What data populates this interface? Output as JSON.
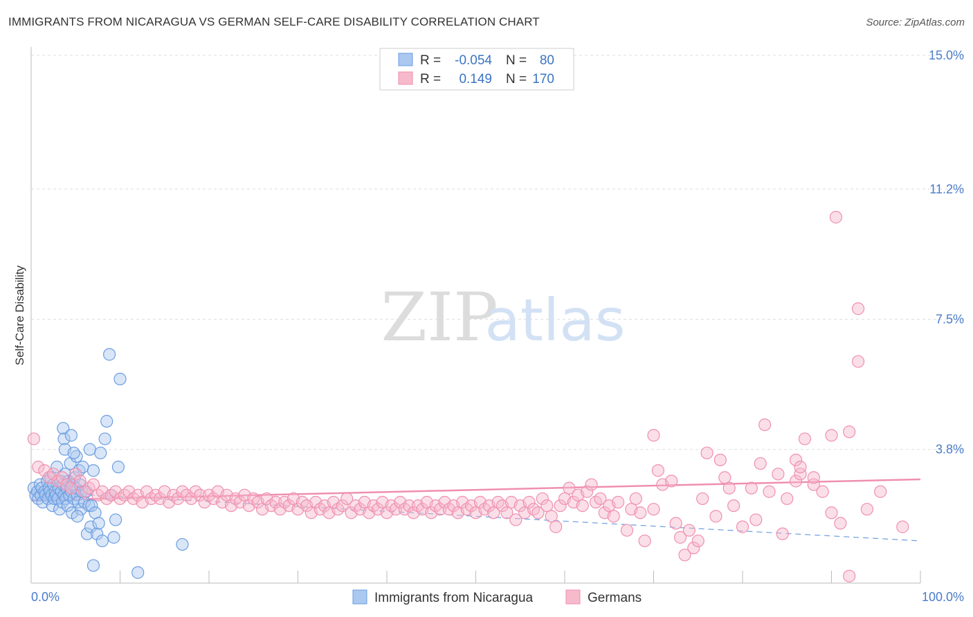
{
  "header": {
    "title": "IMMIGRANTS FROM NICARAGUA VS GERMAN SELF-CARE DISABILITY CORRELATION CHART",
    "source": "Source: ZipAtlas.com"
  },
  "watermark": {
    "zip": "ZIP",
    "atlas": "atlas"
  },
  "legend": {
    "r_label": "R =",
    "n_label": "N =",
    "rows": [
      {
        "r": "-0.054",
        "n": "80",
        "color": "#aac8f0"
      },
      {
        "r": "0.149",
        "n": "170",
        "color": "#f7b9cc"
      }
    ]
  },
  "chart_data": {
    "type": "scatter",
    "title": "IMMIGRANTS FROM NICARAGUA VS GERMAN SELF-CARE DISABILITY CORRELATION CHART",
    "xlabel": "",
    "ylabel": "Self-Care Disability",
    "xlim": [
      0,
      100
    ],
    "ylim": [
      0,
      15
    ],
    "x_tick_labels": [
      "0.0%",
      "100.0%"
    ],
    "y_ticks": [
      3.8,
      7.5,
      11.2,
      15.0
    ],
    "y_tick_labels": [
      "3.8%",
      "7.5%",
      "11.2%",
      "15.0%"
    ],
    "grid": "horizontal dashed",
    "legend_position": "bottom",
    "series": [
      {
        "name": "Immigrants from Nicaragua",
        "color": "#6b9de0",
        "trend": {
          "x": [
            0,
            100
          ],
          "y": [
            2.6,
            1.2
          ],
          "dashed": true
        },
        "points": [
          [
            0.3,
            2.7
          ],
          [
            0.5,
            2.5
          ],
          [
            0.7,
            2.6
          ],
          [
            0.8,
            2.4
          ],
          [
            1.0,
            2.8
          ],
          [
            1.1,
            2.5
          ],
          [
            1.2,
            2.7
          ],
          [
            1.3,
            2.3
          ],
          [
            1.5,
            2.6
          ],
          [
            1.6,
            2.5
          ],
          [
            1.8,
            2.9
          ],
          [
            1.9,
            2.4
          ],
          [
            2.0,
            2.7
          ],
          [
            2.1,
            2.6
          ],
          [
            2.2,
            3.0
          ],
          [
            2.3,
            2.5
          ],
          [
            2.4,
            2.2
          ],
          [
            2.5,
            2.8
          ],
          [
            2.6,
            2.4
          ],
          [
            2.7,
            2.6
          ],
          [
            2.8,
            2.5
          ],
          [
            2.9,
            3.3
          ],
          [
            3.0,
            2.4
          ],
          [
            3.1,
            2.7
          ],
          [
            3.2,
            2.1
          ],
          [
            3.3,
            2.9
          ],
          [
            3.4,
            2.6
          ],
          [
            3.5,
            2.3
          ],
          [
            3.6,
            2.8
          ],
          [
            3.7,
            2.5
          ],
          [
            3.8,
            3.1
          ],
          [
            3.9,
            2.4
          ],
          [
            4.0,
            2.7
          ],
          [
            4.1,
            2.2
          ],
          [
            4.2,
            2.9
          ],
          [
            4.3,
            2.5
          ],
          [
            4.4,
            3.4
          ],
          [
            4.5,
            2.6
          ],
          [
            4.6,
            2.0
          ],
          [
            4.7,
            2.8
          ],
          [
            4.8,
            2.4
          ],
          [
            4.9,
            3.0
          ],
          [
            5.0,
            2.7
          ],
          [
            5.1,
            3.6
          ],
          [
            5.2,
            2.5
          ],
          [
            5.3,
            2.3
          ],
          [
            5.4,
            3.2
          ],
          [
            5.5,
            2.8
          ],
          [
            5.6,
            2.1
          ],
          [
            5.7,
            2.6
          ],
          [
            3.6,
            4.4
          ],
          [
            3.7,
            4.1
          ],
          [
            3.8,
            3.8
          ],
          [
            4.5,
            4.2
          ],
          [
            4.8,
            3.7
          ],
          [
            5.2,
            1.9
          ],
          [
            5.8,
            3.3
          ],
          [
            6.0,
            2.3
          ],
          [
            6.2,
            2.6
          ],
          [
            6.3,
            1.4
          ],
          [
            6.5,
            2.2
          ],
          [
            6.6,
            3.8
          ],
          [
            6.7,
            1.6
          ],
          [
            6.8,
            2.2
          ],
          [
            7.0,
            3.2
          ],
          [
            7.2,
            2.0
          ],
          [
            7.4,
            1.4
          ],
          [
            7.6,
            1.7
          ],
          [
            7.8,
            3.7
          ],
          [
            8.0,
            1.2
          ],
          [
            8.3,
            4.1
          ],
          [
            8.5,
            4.6
          ],
          [
            8.8,
            6.5
          ],
          [
            9.0,
            2.5
          ],
          [
            9.3,
            1.3
          ],
          [
            9.5,
            1.8
          ],
          [
            9.8,
            3.3
          ],
          [
            10.0,
            5.8
          ],
          [
            7.0,
            0.5
          ],
          [
            12.0,
            0.3
          ],
          [
            17.0,
            1.1
          ]
        ]
      },
      {
        "name": "Germans",
        "color": "#ef8fae",
        "trend": {
          "x": [
            0,
            100
          ],
          "y": [
            2.35,
            2.95
          ],
          "dashed": false
        },
        "points": [
          [
            0.3,
            4.1
          ],
          [
            0.8,
            3.3
          ],
          [
            1.5,
            3.2
          ],
          [
            2.0,
            3.0
          ],
          [
            2.5,
            3.1
          ],
          [
            3.0,
            2.9
          ],
          [
            3.5,
            3.0
          ],
          [
            4.0,
            2.8
          ],
          [
            4.5,
            2.7
          ],
          [
            5.0,
            3.1
          ],
          [
            5.5,
            2.9
          ],
          [
            6.0,
            2.6
          ],
          [
            6.5,
            2.7
          ],
          [
            7.0,
            2.8
          ],
          [
            7.5,
            2.5
          ],
          [
            8.0,
            2.6
          ],
          [
            8.5,
            2.4
          ],
          [
            9.0,
            2.5
          ],
          [
            9.5,
            2.6
          ],
          [
            10.0,
            2.4
          ],
          [
            10.5,
            2.5
          ],
          [
            11.0,
            2.6
          ],
          [
            11.5,
            2.4
          ],
          [
            12.0,
            2.5
          ],
          [
            12.5,
            2.3
          ],
          [
            13.0,
            2.6
          ],
          [
            13.5,
            2.4
          ],
          [
            14.0,
            2.5
          ],
          [
            14.5,
            2.4
          ],
          [
            15.0,
            2.6
          ],
          [
            15.5,
            2.3
          ],
          [
            16.0,
            2.5
          ],
          [
            16.5,
            2.4
          ],
          [
            17.0,
            2.6
          ],
          [
            17.5,
            2.5
          ],
          [
            18.0,
            2.4
          ],
          [
            18.5,
            2.6
          ],
          [
            19.0,
            2.5
          ],
          [
            19.5,
            2.3
          ],
          [
            20.0,
            2.5
          ],
          [
            20.5,
            2.4
          ],
          [
            21.0,
            2.6
          ],
          [
            21.5,
            2.3
          ],
          [
            22.0,
            2.5
          ],
          [
            22.5,
            2.2
          ],
          [
            23.0,
            2.4
          ],
          [
            23.5,
            2.3
          ],
          [
            24.0,
            2.5
          ],
          [
            24.5,
            2.2
          ],
          [
            25.0,
            2.4
          ],
          [
            25.5,
            2.3
          ],
          [
            26.0,
            2.1
          ],
          [
            26.5,
            2.4
          ],
          [
            27.0,
            2.2
          ],
          [
            27.5,
            2.3
          ],
          [
            28.0,
            2.1
          ],
          [
            28.5,
            2.3
          ],
          [
            29.0,
            2.2
          ],
          [
            29.5,
            2.4
          ],
          [
            30.0,
            2.1
          ],
          [
            30.5,
            2.3
          ],
          [
            31.0,
            2.2
          ],
          [
            31.5,
            2.0
          ],
          [
            32.0,
            2.3
          ],
          [
            32.5,
            2.1
          ],
          [
            33.0,
            2.2
          ],
          [
            33.5,
            2.0
          ],
          [
            34.0,
            2.3
          ],
          [
            34.5,
            2.1
          ],
          [
            35.0,
            2.2
          ],
          [
            35.5,
            2.4
          ],
          [
            36.0,
            2.0
          ],
          [
            36.5,
            2.2
          ],
          [
            37.0,
            2.1
          ],
          [
            37.5,
            2.3
          ],
          [
            38.0,
            2.0
          ],
          [
            38.5,
            2.2
          ],
          [
            39.0,
            2.1
          ],
          [
            39.5,
            2.3
          ],
          [
            40.0,
            2.0
          ],
          [
            40.5,
            2.2
          ],
          [
            41.0,
            2.1
          ],
          [
            41.5,
            2.3
          ],
          [
            42.0,
            2.1
          ],
          [
            42.5,
            2.2
          ],
          [
            43.0,
            2.0
          ],
          [
            43.5,
            2.2
          ],
          [
            44.0,
            2.1
          ],
          [
            44.5,
            2.3
          ],
          [
            45.0,
            2.0
          ],
          [
            45.5,
            2.2
          ],
          [
            46.0,
            2.1
          ],
          [
            46.5,
            2.3
          ],
          [
            47.0,
            2.1
          ],
          [
            47.5,
            2.2
          ],
          [
            48.0,
            2.0
          ],
          [
            48.5,
            2.3
          ],
          [
            49.0,
            2.1
          ],
          [
            49.5,
            2.2
          ],
          [
            50.0,
            2.0
          ],
          [
            50.5,
            2.3
          ],
          [
            51.0,
            2.1
          ],
          [
            51.5,
            2.2
          ],
          [
            52.0,
            2.0
          ],
          [
            52.5,
            2.3
          ],
          [
            53.0,
            2.2
          ],
          [
            53.5,
            2.0
          ],
          [
            54.0,
            2.3
          ],
          [
            54.5,
            1.8
          ],
          [
            55.0,
            2.2
          ],
          [
            55.5,
            2.0
          ],
          [
            56.0,
            2.3
          ],
          [
            56.5,
            2.1
          ],
          [
            57.0,
            2.0
          ],
          [
            57.5,
            2.4
          ],
          [
            58.0,
            2.2
          ],
          [
            58.5,
            1.9
          ],
          [
            59.0,
            1.6
          ],
          [
            59.5,
            2.2
          ],
          [
            60.0,
            2.4
          ],
          [
            60.5,
            2.7
          ],
          [
            61.0,
            2.3
          ],
          [
            61.5,
            2.5
          ],
          [
            62.0,
            2.2
          ],
          [
            62.5,
            2.6
          ],
          [
            63.0,
            2.8
          ],
          [
            63.5,
            2.3
          ],
          [
            64.0,
            2.4
          ],
          [
            64.5,
            2.0
          ],
          [
            65.0,
            2.2
          ],
          [
            65.5,
            1.9
          ],
          [
            66.0,
            2.3
          ],
          [
            67.0,
            1.5
          ],
          [
            67.5,
            2.1
          ],
          [
            68.0,
            2.4
          ],
          [
            68.5,
            2.0
          ],
          [
            69.0,
            1.2
          ],
          [
            70.0,
            2.1
          ],
          [
            70.5,
            3.2
          ],
          [
            71.0,
            2.8
          ],
          [
            72.0,
            2.9
          ],
          [
            72.5,
            1.7
          ],
          [
            73.0,
            1.3
          ],
          [
            73.5,
            0.8
          ],
          [
            74.0,
            1.5
          ],
          [
            74.5,
            1.0
          ],
          [
            75.0,
            1.2
          ],
          [
            75.5,
            2.4
          ],
          [
            76.0,
            3.7
          ],
          [
            77.0,
            1.9
          ],
          [
            77.5,
            3.5
          ],
          [
            78.0,
            3.0
          ],
          [
            78.5,
            2.7
          ],
          [
            79.0,
            2.2
          ],
          [
            80.0,
            1.6
          ],
          [
            81.0,
            2.7
          ],
          [
            81.5,
            1.8
          ],
          [
            82.0,
            3.4
          ],
          [
            83.0,
            2.6
          ],
          [
            84.0,
            3.1
          ],
          [
            84.5,
            1.4
          ],
          [
            85.0,
            2.4
          ],
          [
            86.0,
            2.9
          ],
          [
            86.5,
            3.1
          ],
          [
            87.0,
            4.1
          ],
          [
            88.0,
            2.8
          ],
          [
            89.0,
            2.6
          ],
          [
            90.0,
            2.0
          ],
          [
            91.0,
            1.7
          ],
          [
            92.0,
            0.2
          ],
          [
            93.0,
            6.3
          ],
          [
            94.0,
            2.1
          ],
          [
            95.5,
            2.6
          ],
          [
            98.0,
            1.6
          ],
          [
            86.0,
            3.5
          ],
          [
            90.0,
            4.2
          ],
          [
            92.0,
            4.3
          ],
          [
            86.5,
            3.3
          ],
          [
            88.0,
            3.0
          ],
          [
            90.5,
            10.4
          ],
          [
            93.0,
            7.8
          ],
          [
            82.5,
            4.5
          ],
          [
            70.0,
            4.2
          ]
        ]
      }
    ]
  },
  "bottom_legend": {
    "items": [
      {
        "label": "Immigrants from Nicaragua",
        "color": "#aac8f0"
      },
      {
        "label": "Germans",
        "color": "#f7b9cc"
      }
    ]
  }
}
